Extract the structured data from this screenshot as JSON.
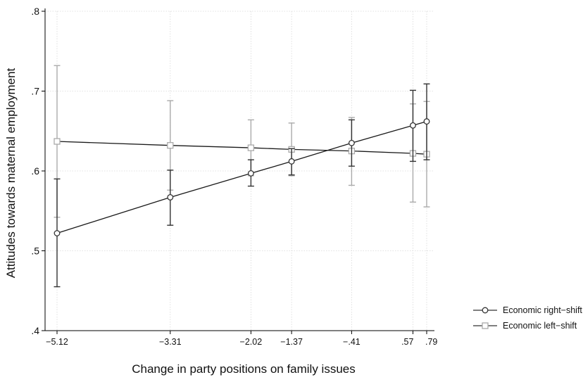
{
  "chart_data": {
    "type": "line",
    "title": "",
    "xlabel": "Change in party positions on family issues",
    "ylabel": "Attitudes towards maternal employment",
    "x": [
      -5.12,
      -3.31,
      -2.02,
      -1.37,
      -0.41,
      0.57,
      0.79
    ],
    "xtick_labels": [
      "−5.12",
      "−3.31",
      "−2.02",
      "−1.37",
      "−.41",
      ".57",
      ".79"
    ],
    "yticks": [
      0.4,
      0.5,
      0.6,
      0.7,
      0.8
    ],
    "ytick_labels": [
      ".4",
      ".5",
      ".6",
      ".7",
      ".8"
    ],
    "ylim": [
      0.4,
      0.8
    ],
    "xlim": [
      -5.12,
      0.79
    ],
    "grid": true,
    "legend_position": "right",
    "series": [
      {
        "name": "Economic right−shift",
        "marker": "circle",
        "color": "#333333",
        "values": [
          0.522,
          0.567,
          0.597,
          0.612,
          0.635,
          0.657,
          0.662
        ],
        "ci_low": [
          0.455,
          0.532,
          0.581,
          0.595,
          0.606,
          0.612,
          0.614
        ],
        "ci_high": [
          0.59,
          0.601,
          0.614,
          0.628,
          0.664,
          0.701,
          0.709
        ]
      },
      {
        "name": "Economic left−shift",
        "marker": "square",
        "color": "#aaaaaa",
        "values": [
          0.637,
          0.632,
          0.629,
          0.627,
          0.625,
          0.622,
          0.621
        ],
        "ci_low": [
          0.542,
          0.576,
          0.594,
          0.594,
          0.582,
          0.561,
          0.555
        ],
        "ci_high": [
          0.732,
          0.688,
          0.664,
          0.66,
          0.667,
          0.684,
          0.687
        ]
      }
    ]
  }
}
